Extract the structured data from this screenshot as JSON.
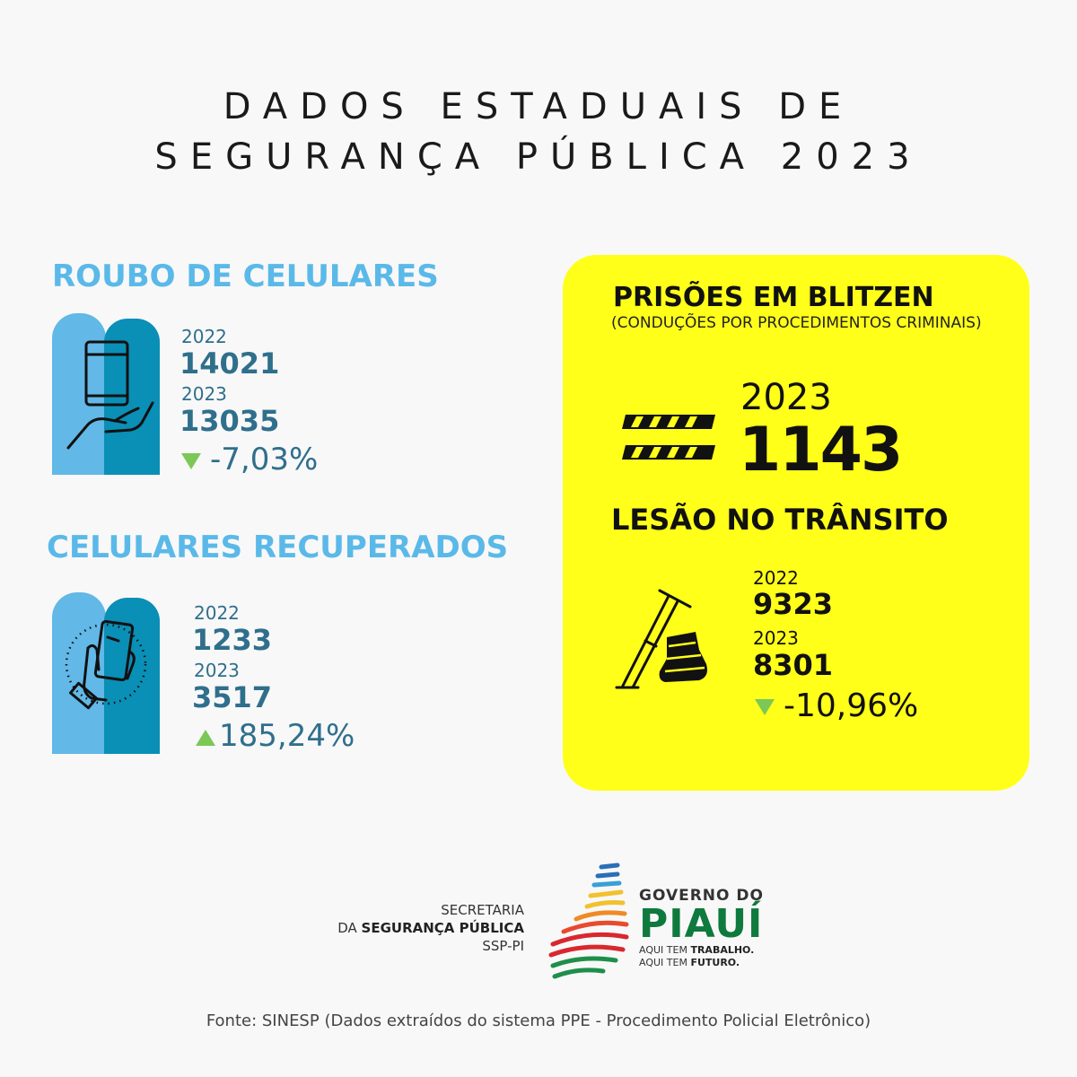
{
  "header": {
    "line1": "DADOS ESTADUAIS DE",
    "line2": "SEGURANÇA PÚBLICA 2023"
  },
  "roubo": {
    "title": "ROUBO DE CELULARES",
    "icon": "phone-in-hand-icon",
    "year1": "2022",
    "value1": "14021",
    "year2": "2023",
    "value2": "13035",
    "change": "-7,03%",
    "trend": "down"
  },
  "recuperados": {
    "title": "CELULARES RECUPERADOS",
    "icon": "hand-holding-phone-icon",
    "year1": "2022",
    "value1": "1233",
    "year2": "2023",
    "value2": "3517",
    "change": "185,24%",
    "trend": "up"
  },
  "blitzen": {
    "title": "PRISÕES EM BLITZEN",
    "subtitle": "(CONDUÇÕES POR PROCEDIMENTOS CRIMINAIS)",
    "icon": "road-barrier-icon",
    "year": "2023",
    "value": "1143"
  },
  "transito": {
    "title": "LESÃO NO TRÂNSITO",
    "icon": "crutch-and-cast-icon",
    "year1": "2022",
    "value1": "9323",
    "year2": "2023",
    "value2": "8301",
    "change": "-10,96%",
    "trend": "down"
  },
  "footer": {
    "ssp_line1": "SECRETARIA",
    "ssp_line2_prefix": "DA ",
    "ssp_line2_bold": "SEGURANÇA PÚBLICA",
    "ssp_line3": "SSP-PI",
    "gov_top": "GOVERNO DO",
    "gov_name": "PIAUÍ",
    "gov_tag1_prefix": "AQUI TEM ",
    "gov_tag1_bold": "TRABALHO.",
    "gov_tag2_prefix": "AQUI TEM ",
    "gov_tag2_bold": "FUTURO.",
    "source": "Fonte: SINESP (Dados extraídos do sistema PPE - Procedimento Policial Eletrônico)"
  },
  "colors": {
    "background": "#f8f8f8",
    "section_title_blue": "#5ab9e8",
    "value_blue": "#2f6f8c",
    "yellow": "#ffff1a",
    "trend_green": "#7cc857",
    "piaui_green": "#0f7a3d"
  }
}
